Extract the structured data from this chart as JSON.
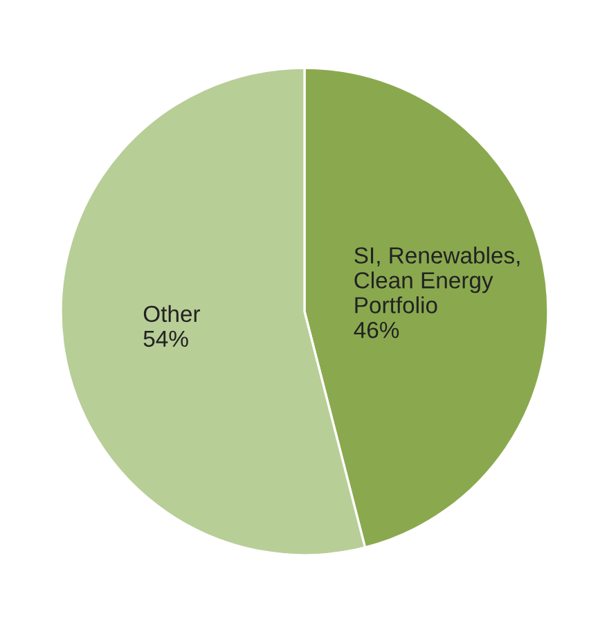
{
  "chart_data": {
    "type": "pie",
    "categories": [
      "SI, Renewables,\nClean Energy\nPortfolio",
      "Other"
    ],
    "values": [
      46,
      54
    ],
    "colors": [
      "#8aa94f",
      "#b8ce97"
    ],
    "value_labels": [
      "46%",
      "54%"
    ]
  }
}
